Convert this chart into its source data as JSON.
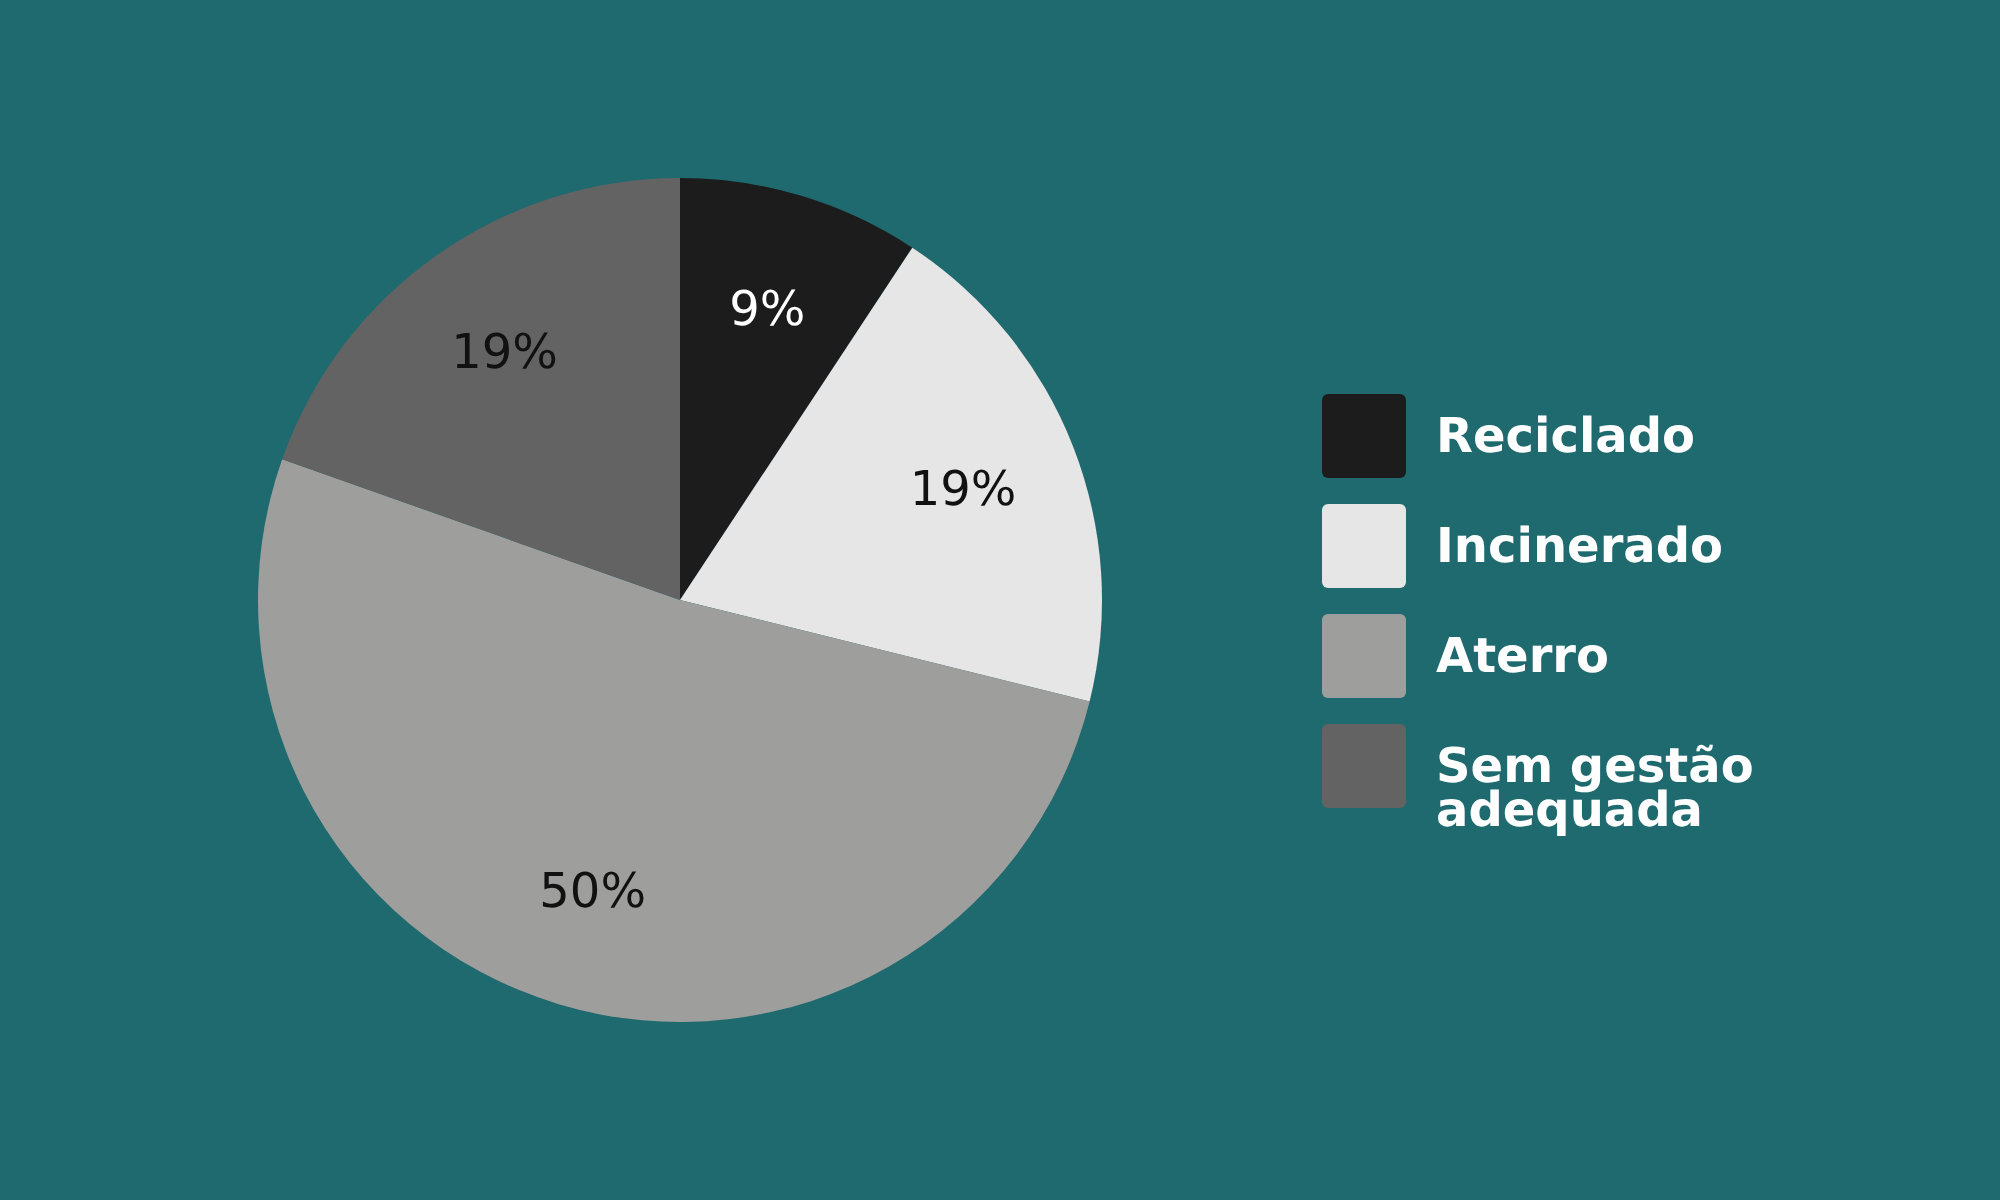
{
  "chart_data": {
    "type": "pie",
    "categories": [
      "Reciclado",
      "Incinerado",
      "Aterro",
      "Sem gestão adequada"
    ],
    "values": [
      9,
      19,
      50,
      19
    ],
    "colors": [
      "#1c1c1c",
      "#e6e6e6",
      "#9e9e9d",
      "#636363"
    ],
    "value_labels": [
      "9%",
      "19%",
      "50%",
      "19%"
    ],
    "legend": "right"
  }
}
